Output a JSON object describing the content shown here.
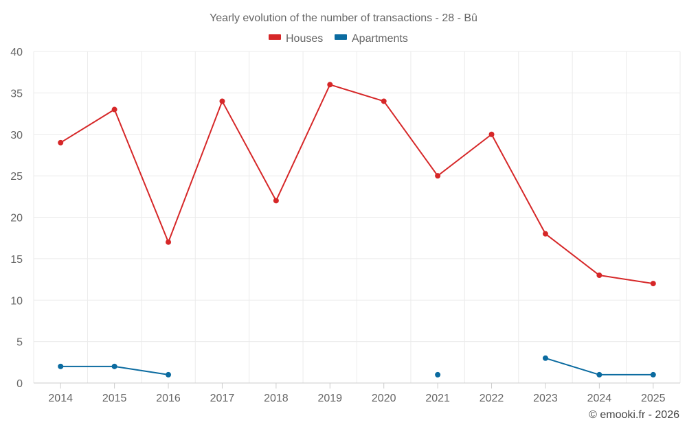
{
  "chart_data": {
    "type": "line",
    "title": "Yearly evolution of the number of transactions - 28 - Bû",
    "categories": [
      "2014",
      "2015",
      "2016",
      "2017",
      "2018",
      "2019",
      "2020",
      "2021",
      "2022",
      "2023",
      "2024",
      "2025"
    ],
    "series": [
      {
        "name": "Houses",
        "color": "#d62728",
        "values": [
          29,
          33,
          17,
          34,
          22,
          36,
          34,
          25,
          30,
          18,
          13,
          12
        ]
      },
      {
        "name": "Apartments",
        "color": "#0b6ba0",
        "values": [
          2,
          2,
          1,
          null,
          null,
          null,
          null,
          1,
          null,
          3,
          1,
          1
        ]
      }
    ],
    "ylim": [
      0,
      40
    ],
    "yticks": [
      0,
      5,
      10,
      15,
      20,
      25,
      30,
      35,
      40
    ],
    "xlabel": "",
    "ylabel": "",
    "grid": true,
    "legend": "top-center"
  },
  "credit": "© emooki.fr - 2026"
}
